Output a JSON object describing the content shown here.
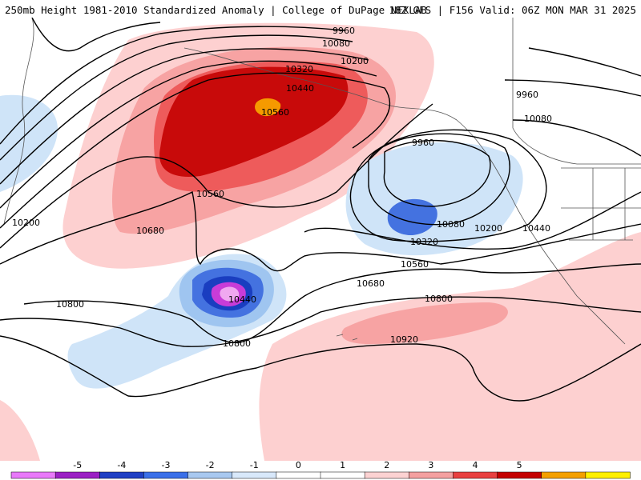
{
  "header": {
    "title_left": "250mb Height 1981-2010 Standardized Anomaly | College of DuPage NEXLAB",
    "title_right": "18Z GFS | F156 Valid: 06Z MON MAR 31 2025"
  },
  "contour_labels": {
    "c1": "9960",
    "c2": "10080",
    "c3": "10200",
    "c4": "10320",
    "c5": "10440",
    "c6": "10560",
    "c7": "10560",
    "c8": "10680",
    "c9": "10200",
    "c10": "9960",
    "c11": "10080",
    "c12": "9960",
    "c13": "10080",
    "c14": "10200",
    "c15": "10320",
    "c16": "10440",
    "c17": "10560",
    "c18": "10680",
    "c19": "10800",
    "c20": "10800",
    "c21": "10440",
    "c22": "10800",
    "c23": "10920"
  },
  "colorbar": {
    "labels": [
      "-5",
      "-4",
      "-3",
      "-2",
      "-1",
      "0",
      "1",
      "2",
      "3",
      "4",
      "5"
    ],
    "colors": [
      "#e879f9",
      "#9b1fc4",
      "#1f3fc4",
      "#3a6fe8",
      "#a8c8f0",
      "#d8e8fa",
      "#ffffff",
      "#ffffff",
      "#fcd2d2",
      "#f4a0a0",
      "#e84040",
      "#c40000",
      "#f4a000",
      "#fff000"
    ]
  },
  "map_colors": {
    "pos1": "#fdd0d0",
    "pos2": "#f7a3a3",
    "pos3": "#ee5b5b",
    "pos4": "#c80a0a",
    "pos5": "#f59a00",
    "neg1": "#cfe4f8",
    "neg2": "#9fc5f0",
    "neg3": "#4472e0",
    "neg4": "#1a3ec0",
    "neg5": "#c83cd8",
    "neg6": "#f0a8f0"
  }
}
